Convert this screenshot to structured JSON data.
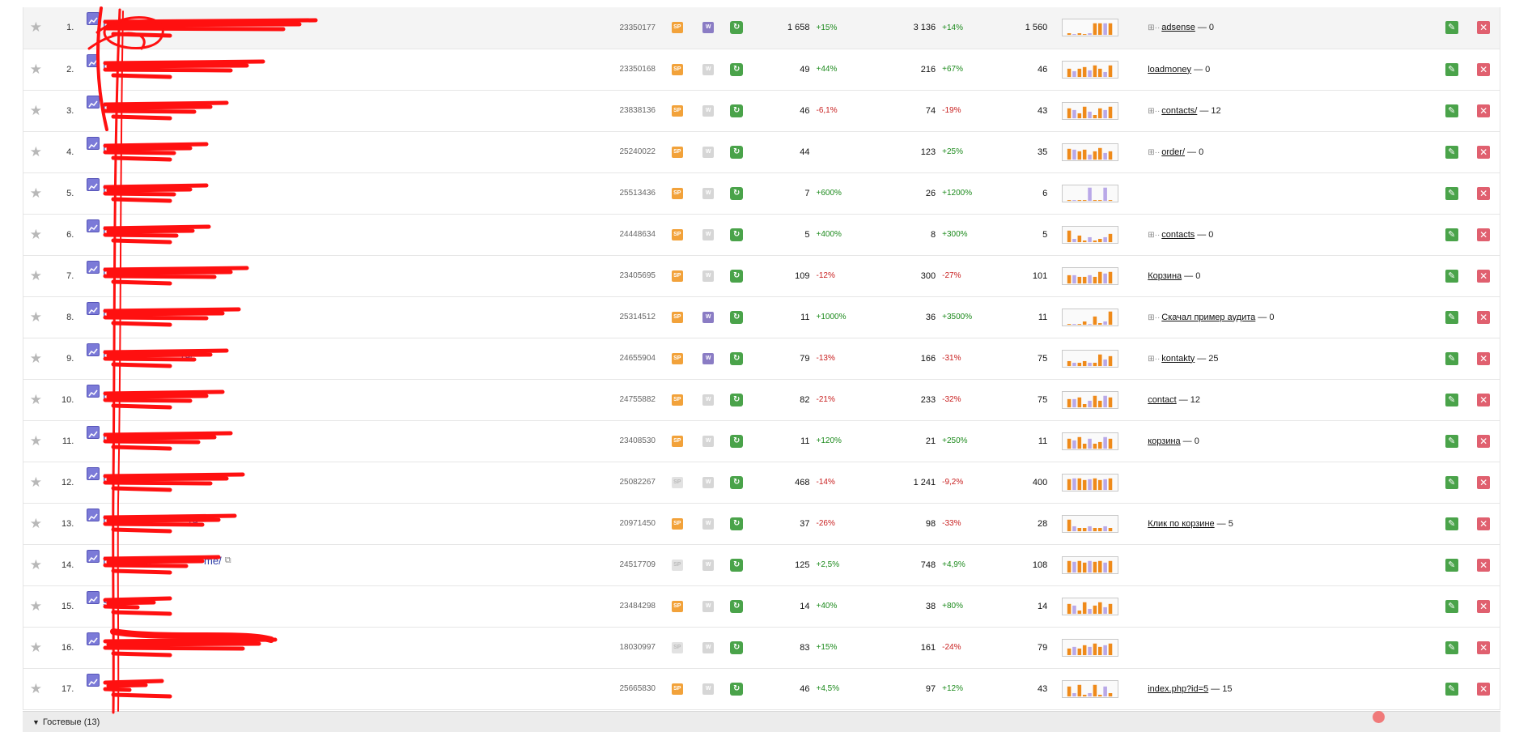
{
  "rows": [
    {
      "index": "1.",
      "url": "http",
      "ext": true,
      "counter": "23350177",
      "icon1": "orange",
      "icon2": "purple",
      "visits": "1 658",
      "visits_pct": "+15%",
      "views": "3 136",
      "views_pct": "+14%",
      "visitors": "1 560",
      "spark": [
        2,
        1,
        2,
        1,
        2,
        14,
        14,
        14,
        14
      ],
      "goal_plus": true,
      "goal": "adsense",
      "goal_count": "— 0"
    },
    {
      "index": "2.",
      "url": "http",
      "ext": false,
      "counter": "23350168",
      "icon1": "orange",
      "icon2": "grey",
      "visits": "49",
      "visits_pct": "+44%",
      "views": "216",
      "views_pct": "+67%",
      "visitors": "46",
      "spark": [
        10,
        7,
        10,
        12,
        8,
        14,
        10,
        6,
        14
      ],
      "goal_plus": false,
      "goal": "loadmoney",
      "goal_count": "— 0"
    },
    {
      "index": "3.",
      "url": "http",
      "ext": false,
      "counter": "23838136",
      "icon1": "orange",
      "icon2": "grey",
      "visits": "46",
      "visits_pct": "-6,1%",
      "views": "74",
      "views_pct": "-19%",
      "visitors": "43",
      "spark": [
        12,
        10,
        6,
        14,
        8,
        4,
        12,
        10,
        14
      ],
      "goal_plus": true,
      "goal": "contacts/",
      "goal_count": "— 12"
    },
    {
      "index": "4.",
      "url": "http",
      "ext": false,
      "counter": "25240022",
      "icon1": "orange",
      "icon2": "grey",
      "visits": "44",
      "visits_pct": "",
      "views": "123",
      "views_pct": "+25%",
      "visitors": "35",
      "spark": [
        13,
        12,
        10,
        12,
        6,
        10,
        14,
        8,
        10
      ],
      "goal_plus": true,
      "goal": "order/",
      "goal_count": "— 0"
    },
    {
      "index": "5.",
      "url": "http",
      "ext": false,
      "counter": "25513436",
      "icon1": "orange",
      "icon2": "grey",
      "visits": "7",
      "visits_pct": "+600%",
      "views": "26",
      "views_pct": "+1200%",
      "visitors": "6",
      "spark": [
        1,
        1,
        1,
        1,
        16,
        1,
        1,
        16,
        1
      ],
      "goal_plus": false,
      "goal": "",
      "goal_count": ""
    },
    {
      "index": "6.",
      "url": "http",
      "ext": true,
      "counter": "24448634",
      "icon1": "orange",
      "icon2": "grey",
      "visits": "5",
      "visits_pct": "+400%",
      "views": "8",
      "views_pct": "+300%",
      "visitors": "5",
      "spark": [
        14,
        4,
        8,
        2,
        6,
        2,
        4,
        6,
        10
      ],
      "goal_plus": true,
      "goal": "contacts",
      "goal_count": "— 0"
    },
    {
      "index": "7.",
      "url": "http",
      "ext": false,
      "counter": "23405695",
      "icon1": "orange",
      "icon2": "grey",
      "visits": "109",
      "visits_pct": "-12%",
      "views": "300",
      "views_pct": "-27%",
      "visitors": "101",
      "spark": [
        10,
        10,
        8,
        8,
        10,
        8,
        14,
        12,
        14
      ],
      "goal_plus": false,
      "goal": "Корзина",
      "goal_count": "— 0"
    },
    {
      "index": "8.",
      "url": "http://",
      "ext": true,
      "counter": "25314512",
      "icon1": "orange",
      "icon2": "purple",
      "visits": "11",
      "visits_pct": "+1000%",
      "views": "36",
      "views_pct": "+3500%",
      "visitors": "11",
      "spark": [
        1,
        1,
        1,
        4,
        1,
        10,
        2,
        4,
        16
      ],
      "goal_plus": true,
      "goal": "Скачал пример аудита",
      "goal_count": "— 0"
    },
    {
      "index": "9.",
      "url": "http://",
      "url_tail": "ru/",
      "ext": true,
      "counter": "24655904",
      "icon1": "orange",
      "icon2": "purple",
      "visits": "79",
      "visits_pct": "-13%",
      "views": "166",
      "views_pct": "-31%",
      "visitors": "75",
      "spark": [
        6,
        4,
        4,
        6,
        4,
        4,
        14,
        8,
        12
      ],
      "goal_plus": true,
      "goal": "kontakty",
      "goal_count": "— 25"
    },
    {
      "index": "10.",
      "url": "http://sta",
      "ext": true,
      "counter": "24755882",
      "icon1": "orange",
      "icon2": "grey",
      "visits": "82",
      "visits_pct": "-21%",
      "views": "233",
      "views_pct": "-32%",
      "visitors": "75",
      "spark": [
        10,
        10,
        12,
        4,
        8,
        14,
        8,
        14,
        12
      ],
      "goal_plus": false,
      "goal": "contact",
      "goal_count": "— 12"
    },
    {
      "index": "11.",
      "url": "http://t",
      "ext": false,
      "counter": "23408530",
      "icon1": "orange",
      "icon2": "grey",
      "visits": "11",
      "visits_pct": "+120%",
      "views": "21",
      "views_pct": "+250%",
      "visitors": "11",
      "spark": [
        12,
        10,
        14,
        6,
        12,
        6,
        8,
        14,
        12
      ],
      "goal_plus": false,
      "goal": "корзина",
      "goal_count": "— 0"
    },
    {
      "index": "12.",
      "url": "http://wa",
      "ext": true,
      "counter": "25082267",
      "icon1": "lightgrey",
      "icon2": "grey",
      "visits": "468",
      "visits_pct": "-14%",
      "views": "1 241",
      "views_pct": "-9,2%",
      "visitors": "400",
      "spark": [
        13,
        14,
        14,
        12,
        13,
        14,
        12,
        13,
        14
      ],
      "goal_plus": false,
      "goal": "",
      "goal_count": ""
    },
    {
      "index": "13.",
      "url": "http://w",
      "url_tail": "ru",
      "ext": true,
      "counter": "20971450",
      "icon1": "orange",
      "icon2": "grey",
      "visits": "37",
      "visits_pct": "-26%",
      "views": "98",
      "views_pct": "-33%",
      "visitors": "28",
      "spark": [
        14,
        6,
        4,
        4,
        6,
        4,
        4,
        6,
        4
      ],
      "goal_plus": false,
      "goal": "Клик по корзине",
      "goal_count": "— 5"
    },
    {
      "index": "14.",
      "url": "http://www",
      "url_tail": "me/",
      "ext": true,
      "counter": "24517709",
      "icon1": "lightgrey",
      "icon2": "grey",
      "visits": "125",
      "visits_pct": "+2,5%",
      "views": "748",
      "views_pct": "+4,9%",
      "visitors": "108",
      "spark": [
        14,
        13,
        14,
        12,
        14,
        13,
        14,
        12,
        14
      ],
      "goal_plus": false,
      "goal": "",
      "goal_count": ""
    },
    {
      "index": "15.",
      "url": "s",
      "ext": true,
      "counter": "23484298",
      "icon1": "orange",
      "icon2": "grey",
      "visits": "14",
      "visits_pct": "+40%",
      "views": "38",
      "views_pct": "+80%",
      "visitors": "14",
      "spark": [
        12,
        10,
        4,
        14,
        6,
        10,
        14,
        8,
        12
      ],
      "goal_plus": false,
      "goal": "",
      "goal_count": ""
    },
    {
      "index": "16.",
      "url": "",
      "ext": true,
      "counter": "18030997",
      "icon1": "lightgrey",
      "icon2": "grey",
      "visits": "83",
      "visits_pct": "+15%",
      "views": "161",
      "views_pct": "-24%",
      "visitors": "79",
      "spark": [
        8,
        10,
        8,
        12,
        10,
        14,
        10,
        12,
        14
      ],
      "goal_plus": false,
      "goal": "",
      "goal_count": ""
    },
    {
      "index": "17.",
      "url": "",
      "ext": true,
      "counter": "25665830",
      "icon1": "orange",
      "icon2": "grey",
      "visits": "46",
      "visits_pct": "+4,5%",
      "views": "97",
      "views_pct": "+12%",
      "visitors": "43",
      "spark": [
        12,
        4,
        14,
        2,
        4,
        14,
        2,
        12,
        4
      ],
      "goal_plus": false,
      "goal": "index.php?id=5",
      "goal_count": "— 15"
    }
  ],
  "footer": {
    "label": "Гостевые (13)"
  },
  "colors": {
    "positive": "#1c8a1c",
    "negative": "#c81e1e",
    "bar_primary": "#ef8a1a",
    "bar_secondary": "#b9a8e8",
    "redaction": "#ff1010"
  },
  "icons": {
    "star": "star-icon",
    "chart": "chart-icon",
    "external": "external-link-icon",
    "edit": "pencil-icon",
    "delete": "close-icon",
    "refresh": "refresh-icon"
  }
}
